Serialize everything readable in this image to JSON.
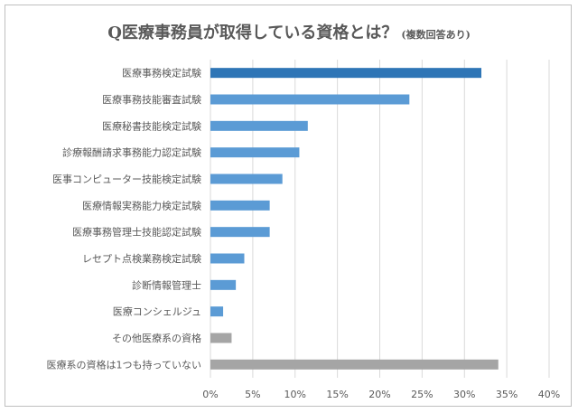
{
  "chart_data": {
    "type": "bar",
    "orientation": "horizontal",
    "title": "Q医療事務員が取得している資格とは？",
    "subtitle": "(複数回答あり)",
    "categories": [
      "医療事務検定試験",
      "医療事務技能審査試験",
      "医療秘書技能検定試験",
      "診療報酬請求事務能力認定試験",
      "医事コンピューター技能検定試験",
      "医療情報実務能力検定試験",
      "医療事務管理士技能認定試験",
      "レセプト点検業務検定試験",
      "診断情報管理士",
      "医療コンシェルジュ",
      "その他医療系の資格",
      "医療系の資格は1つも持っていない"
    ],
    "values": [
      32,
      23.5,
      11.5,
      10.5,
      8.5,
      7,
      7,
      4,
      3,
      1.5,
      2.5,
      34
    ],
    "bar_colors": [
      "#2e75b6",
      "#5b9bd5",
      "#5b9bd5",
      "#5b9bd5",
      "#5b9bd5",
      "#5b9bd5",
      "#5b9bd5",
      "#5b9bd5",
      "#5b9bd5",
      "#5b9bd5",
      "#a5a5a5",
      "#a5a5a5"
    ],
    "xlim": [
      0,
      40
    ],
    "x_ticks": [
      0,
      5,
      10,
      15,
      20,
      25,
      30,
      35,
      40
    ],
    "x_tick_labels": [
      "0%",
      "5%",
      "10%",
      "15%",
      "20%",
      "25%",
      "30%",
      "35%",
      "40%"
    ],
    "grid": true,
    "xlabel": "",
    "ylabel": ""
  }
}
